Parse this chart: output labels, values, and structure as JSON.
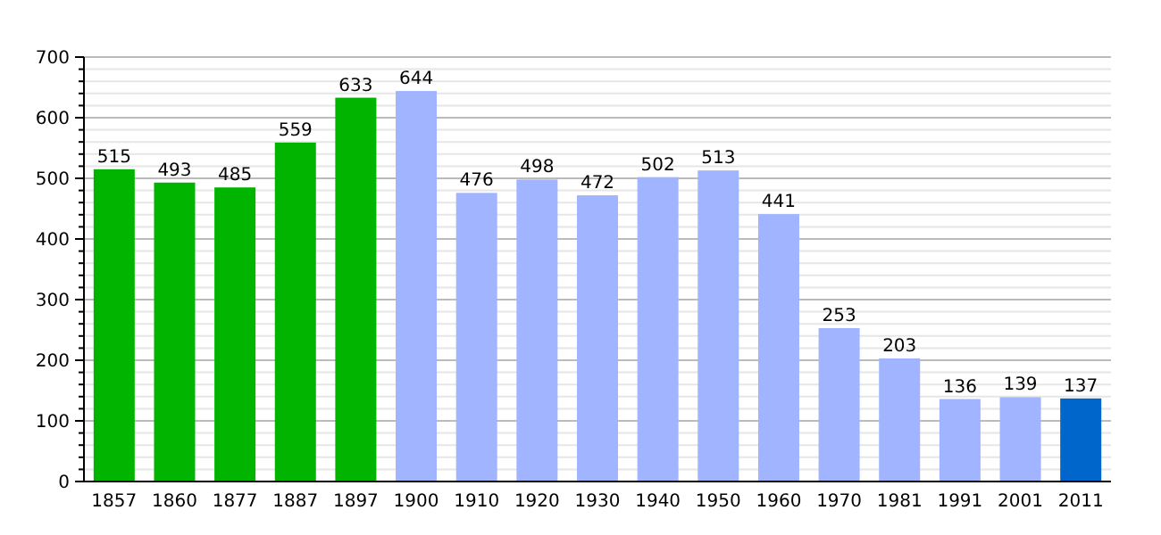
{
  "chart_data": {
    "type": "bar",
    "categories": [
      "1857",
      "1860",
      "1877",
      "1887",
      "1897",
      "1900",
      "1910",
      "1920",
      "1930",
      "1940",
      "1950",
      "1960",
      "1970",
      "1981",
      "1991",
      "2001",
      "2011"
    ],
    "values": [
      515,
      493,
      485,
      559,
      633,
      644,
      476,
      498,
      472,
      502,
      513,
      441,
      253,
      203,
      136,
      139,
      137
    ],
    "colors": [
      "#00b400",
      "#00b400",
      "#00b400",
      "#00b400",
      "#00b400",
      "#a0b4ff",
      "#a0b4ff",
      "#a0b4ff",
      "#a0b4ff",
      "#a0b4ff",
      "#a0b4ff",
      "#a0b4ff",
      "#a0b4ff",
      "#a0b4ff",
      "#a0b4ff",
      "#a0b4ff",
      "#0066cc"
    ],
    "ylim": [
      0,
      700
    ],
    "yticks": [
      0,
      100,
      200,
      300,
      400,
      500,
      600,
      700
    ],
    "grid": "y",
    "data_labels": true
  }
}
